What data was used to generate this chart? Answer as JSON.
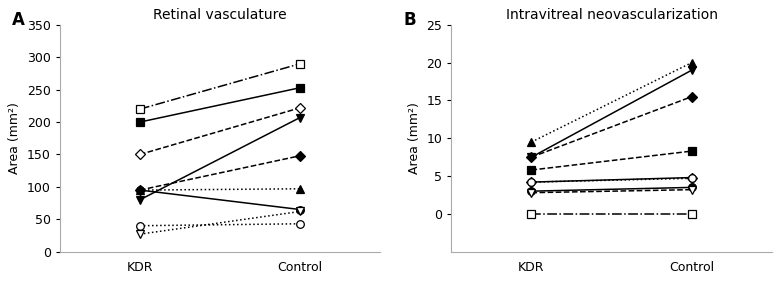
{
  "panel_A_title": "Retinal vasculature",
  "panel_B_title": "Intravitreal neovascularization",
  "panel_A_ylabel": "Area (mm²)",
  "panel_B_ylabel": "Area (mm²)",
  "panel_A_xticks": [
    "KDR",
    "Control"
  ],
  "panel_B_xticks": [
    "KDR",
    "Control"
  ],
  "panel_A_ylim": [
    0,
    350
  ],
  "panel_B_ylim": [
    -5,
    25
  ],
  "panel_A_yticks": [
    0,
    50,
    100,
    150,
    200,
    250,
    300,
    350
  ],
  "panel_B_yticks": [
    0,
    5,
    10,
    15,
    20,
    25
  ],
  "panel_A_label": "A",
  "panel_B_label": "B",
  "panel_A_lines": [
    {
      "kdr": 220,
      "control": 290,
      "marker": "s",
      "fillstyle": "none",
      "linestyle": "-.",
      "color": "black"
    },
    {
      "kdr": 200,
      "control": 253,
      "marker": "s",
      "fillstyle": "full",
      "linestyle": "-",
      "color": "black"
    },
    {
      "kdr": 150,
      "control": 222,
      "marker": "D",
      "fillstyle": "none",
      "linestyle": "--",
      "color": "black"
    },
    {
      "kdr": 80,
      "control": 207,
      "marker": "v",
      "fillstyle": "full",
      "linestyle": "-",
      "color": "black"
    },
    {
      "kdr": 95,
      "control": 148,
      "marker": "D",
      "fillstyle": "full",
      "linestyle": "--",
      "color": "black"
    },
    {
      "kdr": 95,
      "control": 97,
      "marker": "^",
      "fillstyle": "full",
      "linestyle": ":",
      "color": "black"
    },
    {
      "kdr": 95,
      "control": 65,
      "marker": "o",
      "fillstyle": "full",
      "linestyle": "-",
      "color": "black"
    },
    {
      "kdr": 40,
      "control": 43,
      "marker": "o",
      "fillstyle": "none",
      "linestyle": ":",
      "color": "black"
    },
    {
      "kdr": 27,
      "control": 62,
      "marker": "v",
      "fillstyle": "none",
      "linestyle": ":",
      "color": "black"
    }
  ],
  "panel_B_lines": [
    {
      "kdr": 9.5,
      "control": 20.0,
      "marker": "^",
      "fillstyle": "full",
      "linestyle": ":",
      "color": "black"
    },
    {
      "kdr": 7.5,
      "control": 19.0,
      "marker": "v",
      "fillstyle": "full",
      "linestyle": "-",
      "color": "black"
    },
    {
      "kdr": 7.5,
      "control": 15.5,
      "marker": "D",
      "fillstyle": "full",
      "linestyle": "--",
      "color": "black"
    },
    {
      "kdr": 5.8,
      "control": 8.3,
      "marker": "s",
      "fillstyle": "full",
      "linestyle": "--",
      "color": "black"
    },
    {
      "kdr": 4.2,
      "control": 4.8,
      "marker": "D",
      "fillstyle": "none",
      "linestyle": "-",
      "color": "black"
    },
    {
      "kdr": 4.2,
      "control": 4.7,
      "marker": "o",
      "fillstyle": "none",
      "linestyle": ":",
      "color": "black"
    },
    {
      "kdr": 3.0,
      "control": 3.5,
      "marker": "o",
      "fillstyle": "full",
      "linestyle": "-",
      "color": "black"
    },
    {
      "kdr": 2.8,
      "control": 3.2,
      "marker": "v",
      "fillstyle": "none",
      "linestyle": "--",
      "color": "black"
    },
    {
      "kdr": 0.0,
      "control": 0.0,
      "marker": "s",
      "fillstyle": "none",
      "linestyle": "-.",
      "color": "black"
    }
  ],
  "spine_color": "#aaaaaa",
  "background_color": "#ffffff",
  "marker_size": 5.5,
  "linewidth": 1.1,
  "title_fontsize": 10,
  "tick_fontsize": 9,
  "ylabel_fontsize": 9,
  "label_fontsize": 12
}
